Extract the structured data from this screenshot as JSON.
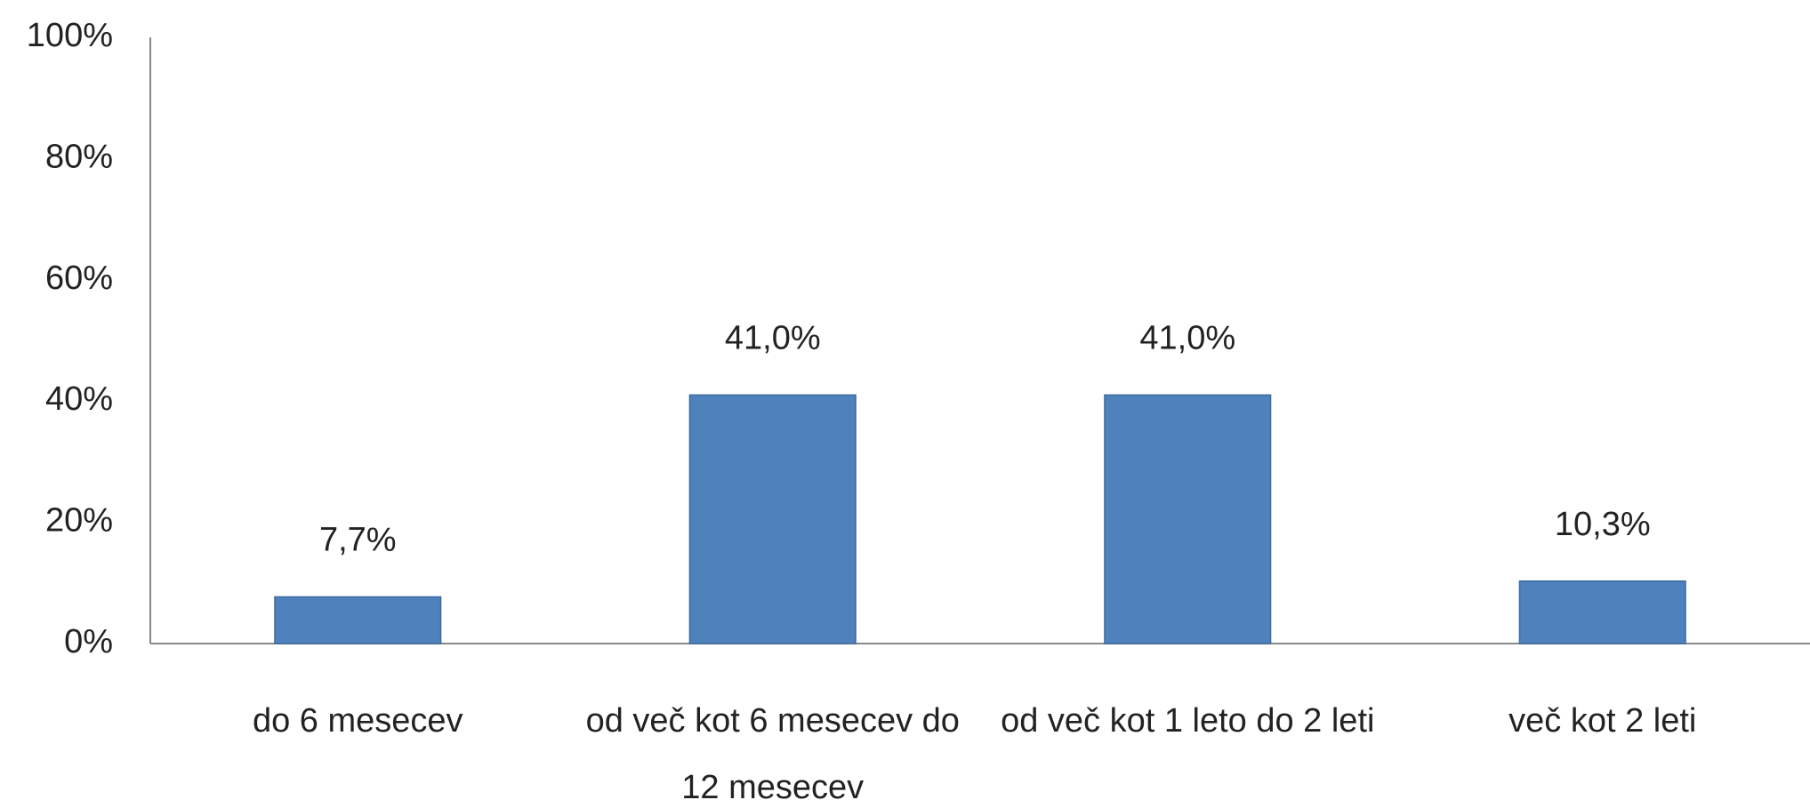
{
  "chart_data": {
    "type": "bar",
    "categories": [
      "do 6 mesecev",
      "od več kot 6 mesecev do 12 mesecev",
      "od več kot 1 leto do 2 leti",
      "več kot 2 leti"
    ],
    "values": [
      7.7,
      41.0,
      41.0,
      10.3
    ],
    "value_labels": [
      "7,7%",
      "41,0%",
      "41,0%",
      "10,3%"
    ],
    "color": "#4f81bd",
    "ylim": [
      0,
      100
    ],
    "yticks": [
      {
        "value": 0,
        "label": "0%"
      },
      {
        "value": 20,
        "label": "20%"
      },
      {
        "value": 40,
        "label": "40%"
      },
      {
        "value": 60,
        "label": "60%"
      },
      {
        "value": 80,
        "label": "80%"
      },
      {
        "value": 100,
        "label": "100%"
      }
    ],
    "grid": false
  }
}
